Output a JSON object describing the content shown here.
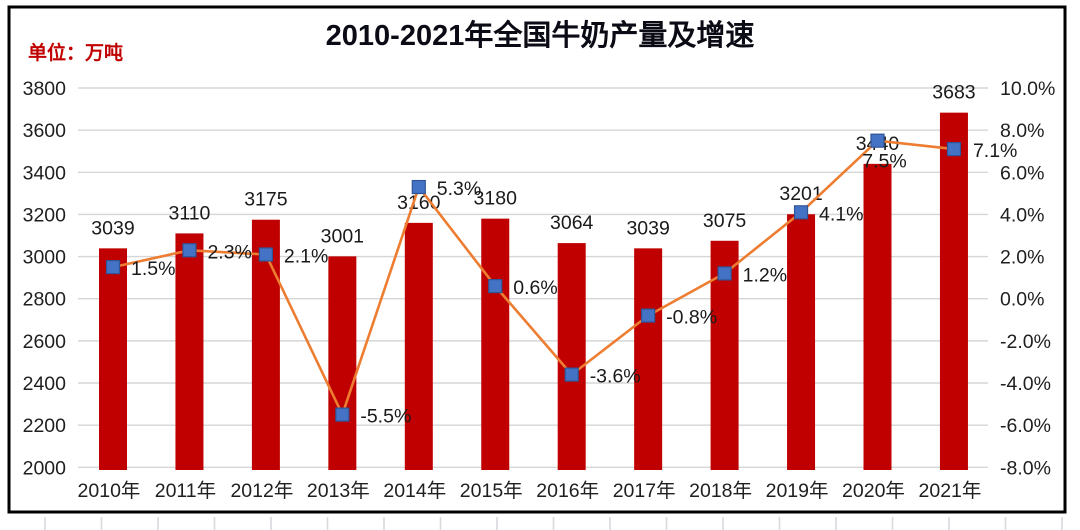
{
  "title": "2010-2021年全国牛奶产量及增速",
  "unit_label": "单位：万吨",
  "colors": {
    "background": "#FFFFFF",
    "panel_border": "#000000",
    "bar": "#C00000",
    "line": "#ED7D31",
    "marker_fill": "#4472C4",
    "marker_border": "#2F5597",
    "gridline": "#D6D6D6",
    "axis_text": "#1F1F1F",
    "title_text": "#0B0B15",
    "unit_text": "#C00000",
    "data_label_text": "#1A1A1A",
    "bottom_ruler_tick": "#D9D9DE"
  },
  "chart_data": {
    "type": "bar+line combo",
    "title": "2010-2021年全国牛奶产量及增速",
    "categories": [
      "2010年",
      "2011年",
      "2012年",
      "2013年",
      "2014年",
      "2015年",
      "2016年",
      "2017年",
      "2018年",
      "2019年",
      "2020年",
      "2021年"
    ],
    "series": [
      {
        "name": "牛奶产量",
        "type": "bar",
        "axis": "left",
        "values": [
          3039,
          3110,
          3175,
          3001,
          3160,
          3180,
          3064,
          3039,
          3075,
          3201,
          3440,
          3683
        ],
        "data_labels": [
          "3039",
          "3110",
          "3175",
          "3001",
          "3160",
          "3180",
          "3064",
          "3039",
          "3075",
          "3201",
          "3440",
          "3683"
        ]
      },
      {
        "name": "增速",
        "type": "line",
        "axis": "right",
        "values": [
          1.5,
          2.3,
          2.1,
          -5.5,
          5.3,
          0.6,
          -3.6,
          -0.8,
          1.2,
          4.1,
          7.5,
          7.1
        ],
        "data_labels": [
          "1.5%",
          "2.3%",
          "2.1%",
          "-5.5%",
          "5.3%",
          "0.6%",
          "-3.6%",
          "-0.8%",
          "1.2%",
          "4.1%",
          "7.5%",
          "7.1%"
        ]
      }
    ],
    "left_axis": {
      "unit_label": "单位：万吨",
      "min": 2000,
      "max": 3800,
      "tick_step": 200,
      "ticks": [
        "3800",
        "3600",
        "3400",
        "3200",
        "3000",
        "2800",
        "2600",
        "2400",
        "2200",
        "2000"
      ]
    },
    "right_axis": {
      "min": -8,
      "max": 10,
      "tick_step": 2,
      "ticks": [
        "10.0%",
        "8.0%",
        "6.0%",
        "4.0%",
        "2.0%",
        "0.0%",
        "-2.0%",
        "-4.0%",
        "-6.0%",
        "-8.0%"
      ]
    },
    "grid": "horizontal",
    "legend": "none"
  }
}
